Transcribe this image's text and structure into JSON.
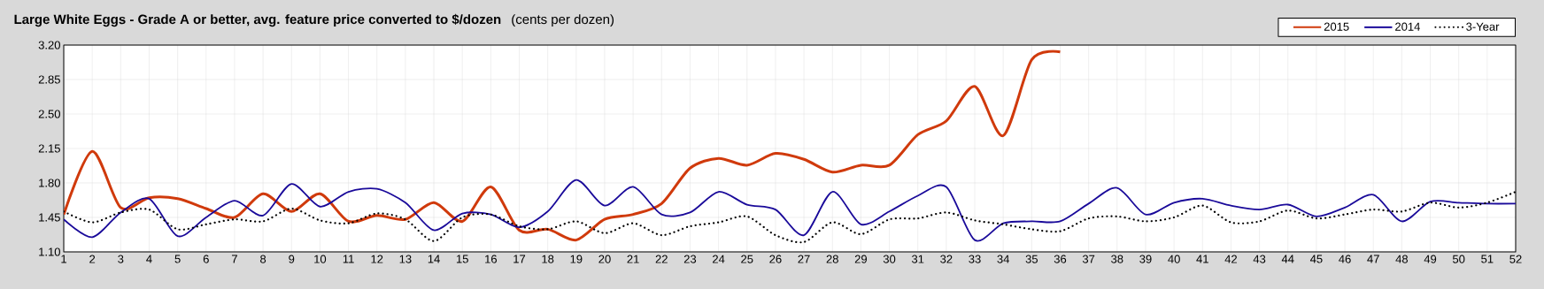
{
  "chart_data": {
    "type": "line",
    "title": "Large White Eggs -  Grade A or better,  avg. feature price converted to $/dozen",
    "subtitle": "(cents per dozen)",
    "x": [
      1,
      2,
      3,
      4,
      5,
      6,
      7,
      8,
      9,
      10,
      11,
      12,
      13,
      14,
      15,
      16,
      17,
      18,
      19,
      20,
      21,
      22,
      23,
      24,
      25,
      26,
      27,
      28,
      29,
      30,
      31,
      32,
      33,
      34,
      35,
      36,
      37,
      38,
      39,
      40,
      41,
      42,
      43,
      44,
      45,
      46,
      47,
      48,
      49,
      50,
      51,
      52
    ],
    "series": [
      {
        "name": "2015",
        "color": "#d03a0c",
        "line_style": "solid",
        "values": [
          1.48,
          2.12,
          1.55,
          1.65,
          1.64,
          1.54,
          1.45,
          1.69,
          1.51,
          1.69,
          1.41,
          1.47,
          1.43,
          1.6,
          1.41,
          1.76,
          1.32,
          1.33,
          1.22,
          1.43,
          1.48,
          1.59,
          1.95,
          2.05,
          1.98,
          2.1,
          2.04,
          1.91,
          1.98,
          1.98,
          2.29,
          2.43,
          2.78,
          2.28,
          3.05,
          3.13,
          null,
          null,
          null,
          null,
          null,
          null,
          null,
          null,
          null,
          null,
          null,
          null,
          null,
          null,
          null,
          null
        ]
      },
      {
        "name": "2014",
        "color": "#1a0a9a",
        "line_style": "solid",
        "values": [
          1.43,
          1.25,
          1.5,
          1.64,
          1.26,
          1.45,
          1.62,
          1.47,
          1.79,
          1.56,
          1.71,
          1.74,
          1.6,
          1.32,
          1.49,
          1.48,
          1.35,
          1.51,
          1.83,
          1.57,
          1.76,
          1.48,
          1.5,
          1.71,
          1.58,
          1.53,
          1.27,
          1.71,
          1.38,
          1.51,
          1.67,
          1.76,
          1.22,
          1.39,
          1.41,
          1.41,
          1.59,
          1.75,
          1.48,
          1.6,
          1.64,
          1.57,
          1.53,
          1.58,
          1.46,
          1.55,
          1.68,
          1.41,
          1.61,
          1.6,
          1.59,
          1.59
        ]
      },
      {
        "name": "3-Year",
        "color": "#000000",
        "line_style": "dotted",
        "values": [
          1.51,
          1.4,
          1.5,
          1.53,
          1.33,
          1.38,
          1.43,
          1.41,
          1.54,
          1.42,
          1.39,
          1.49,
          1.43,
          1.21,
          1.45,
          1.48,
          1.36,
          1.33,
          1.41,
          1.29,
          1.39,
          1.27,
          1.36,
          1.4,
          1.46,
          1.27,
          1.2,
          1.4,
          1.28,
          1.43,
          1.44,
          1.5,
          1.42,
          1.38,
          1.33,
          1.31,
          1.44,
          1.46,
          1.41,
          1.45,
          1.57,
          1.4,
          1.41,
          1.52,
          1.44,
          1.48,
          1.53,
          1.51,
          1.6,
          1.55,
          1.6,
          1.71
        ]
      }
    ],
    "xlim": [
      1,
      52
    ],
    "xticks": [
      1,
      2,
      3,
      4,
      5,
      6,
      7,
      8,
      9,
      10,
      11,
      12,
      13,
      14,
      15,
      16,
      17,
      18,
      19,
      20,
      21,
      22,
      23,
      24,
      25,
      26,
      27,
      28,
      29,
      30,
      31,
      32,
      33,
      34,
      35,
      36,
      37,
      38,
      39,
      40,
      41,
      42,
      43,
      44,
      45,
      46,
      47,
      48,
      49,
      50,
      51,
      52
    ],
    "ylim": [
      1.1,
      3.2
    ],
    "yticks": [
      {
        "value": 1.1,
        "label": "1.10"
      },
      {
        "value": 1.45,
        "label": "1.45"
      },
      {
        "value": 1.8,
        "label": "1.80"
      },
      {
        "value": 2.15,
        "label": "2.15"
      },
      {
        "value": 2.5,
        "label": "2.50"
      },
      {
        "value": 2.85,
        "label": "2.85"
      },
      {
        "value": 3.2,
        "label": "3.20"
      }
    ],
    "grid": true,
    "legend": "top right",
    "marker": "none"
  }
}
